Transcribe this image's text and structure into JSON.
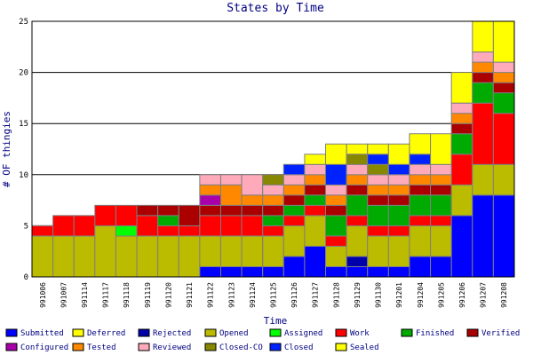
{
  "chart_data": {
    "type": "bar",
    "stacked": true,
    "title": "States by Time",
    "xlabel": "Time",
    "ylabel": "# OF thingies",
    "ylim": [
      0,
      25
    ],
    "yticks": [
      0,
      5,
      10,
      15,
      20,
      25
    ],
    "grid": true,
    "legend_position": "bottom",
    "categories": [
      "991006",
      "991007",
      "991114",
      "991117",
      "991118",
      "991119",
      "991120",
      "991121",
      "991122",
      "991123",
      "991124",
      "991125",
      "991126",
      "991127",
      "991128",
      "991129",
      "991130",
      "991201",
      "991204",
      "991205",
      "991206",
      "991207",
      "991208"
    ],
    "series": [
      {
        "name": "Submitted",
        "color": "#0000ff",
        "values": [
          0,
          0,
          0,
          0,
          0,
          0,
          0,
          0,
          1,
          1,
          1,
          1,
          2,
          3,
          1,
          1,
          1,
          1,
          2,
          2,
          6,
          8,
          8
        ]
      },
      {
        "name": "Deferred",
        "color": "#ffff00",
        "values": [
          0,
          0,
          0,
          0,
          0,
          0,
          0,
          0,
          0,
          0,
          0,
          0,
          0,
          0,
          0,
          0,
          0,
          0,
          0,
          0,
          0,
          0,
          0
        ]
      },
      {
        "name": "Rejected",
        "color": "#0000aa",
        "values": [
          0,
          0,
          0,
          0,
          0,
          0,
          0,
          0,
          0,
          0,
          0,
          0,
          0,
          0,
          0,
          1,
          0,
          0,
          0,
          0,
          0,
          0,
          0
        ]
      },
      {
        "name": "Opened",
        "color": "#bbbb00",
        "values": [
          4,
          4,
          4,
          5,
          4,
          4,
          4,
          4,
          3,
          3,
          3,
          3,
          3,
          3,
          2,
          3,
          3,
          3,
          3,
          3,
          3,
          3,
          3
        ]
      },
      {
        "name": "Assigned",
        "color": "#00ff00",
        "values": [
          0,
          0,
          0,
          0,
          1,
          0,
          0,
          0,
          0,
          0,
          0,
          0,
          0,
          0,
          0,
          0,
          0,
          0,
          0,
          0,
          0,
          0,
          0
        ]
      },
      {
        "name": "Work",
        "color": "#ff0000",
        "values": [
          1,
          2,
          2,
          2,
          2,
          2,
          1,
          1,
          2,
          2,
          2,
          1,
          1,
          1,
          1,
          1,
          1,
          1,
          1,
          1,
          3,
          6,
          5
        ]
      },
      {
        "name": "Finished",
        "color": "#00aa00",
        "values": [
          0,
          0,
          0,
          0,
          0,
          0,
          1,
          0,
          0,
          0,
          0,
          1,
          1,
          1,
          2,
          2,
          2,
          2,
          2,
          2,
          2,
          2,
          2
        ]
      },
      {
        "name": "Verified",
        "color": "#aa0000",
        "values": [
          0,
          0,
          0,
          0,
          0,
          1,
          1,
          2,
          1,
          1,
          1,
          1,
          1,
          1,
          1,
          1,
          1,
          1,
          1,
          1,
          1,
          1,
          1
        ]
      },
      {
        "name": "Configured",
        "color": "#aa00aa",
        "values": [
          0,
          0,
          0,
          0,
          0,
          0,
          0,
          0,
          1,
          0,
          0,
          0,
          0,
          0,
          0,
          0,
          0,
          0,
          0,
          0,
          0,
          0,
          0
        ]
      },
      {
        "name": "Tested",
        "color": "#ff8800",
        "values": [
          0,
          0,
          0,
          0,
          0,
          0,
          0,
          0,
          1,
          2,
          1,
          1,
          1,
          1,
          1,
          1,
          1,
          1,
          1,
          1,
          1,
          1,
          1
        ]
      },
      {
        "name": "Reviewed",
        "color": "#ffaabb",
        "values": [
          0,
          0,
          0,
          0,
          0,
          0,
          0,
          0,
          1,
          1,
          2,
          1,
          1,
          1,
          1,
          1,
          1,
          1,
          1,
          1,
          1,
          1,
          1
        ]
      },
      {
        "name": "Closed-CO",
        "color": "#888800",
        "values": [
          0,
          0,
          0,
          0,
          0,
          0,
          0,
          0,
          0,
          0,
          0,
          1,
          0,
          0,
          0,
          1,
          1,
          0,
          0,
          0,
          0,
          0,
          0
        ]
      },
      {
        "name": "Closed",
        "color": "#0022ff",
        "values": [
          0,
          0,
          0,
          0,
          0,
          0,
          0,
          0,
          0,
          0,
          0,
          0,
          1,
          0,
          2,
          0,
          1,
          1,
          1,
          0,
          0,
          0,
          0
        ]
      },
      {
        "name": "Sealed",
        "color": "#ffff00",
        "values": [
          0,
          0,
          0,
          0,
          0,
          0,
          0,
          0,
          0,
          0,
          0,
          0,
          0,
          1,
          2,
          1,
          1,
          2,
          2,
          3,
          3,
          3,
          4
        ]
      }
    ]
  }
}
